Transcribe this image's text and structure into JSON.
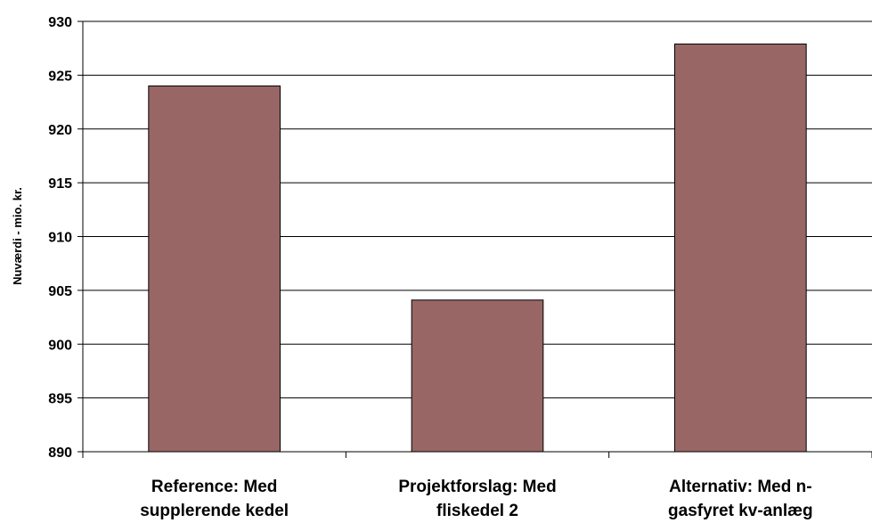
{
  "chart_data": {
    "type": "bar",
    "title": "",
    "xlabel": "",
    "ylabel": "Nuværdi - mio. kr.",
    "categories": [
      [
        "Reference: Med",
        "supplerende kedel"
      ],
      [
        "Projektforslag: Med",
        "fliskedel 2"
      ],
      [
        "Alternativ: Med n-",
        "gasfyret kv-anlæg"
      ]
    ],
    "values": [
      924,
      904.1,
      927.9
    ],
    "ylim": [
      890,
      930
    ],
    "yticks": [
      890,
      895,
      900,
      905,
      910,
      915,
      920,
      925,
      930
    ],
    "grid": true,
    "legend": "none",
    "colors": {
      "bar": "#996666",
      "bar_stroke": "#000000",
      "grid": "#000000"
    }
  }
}
